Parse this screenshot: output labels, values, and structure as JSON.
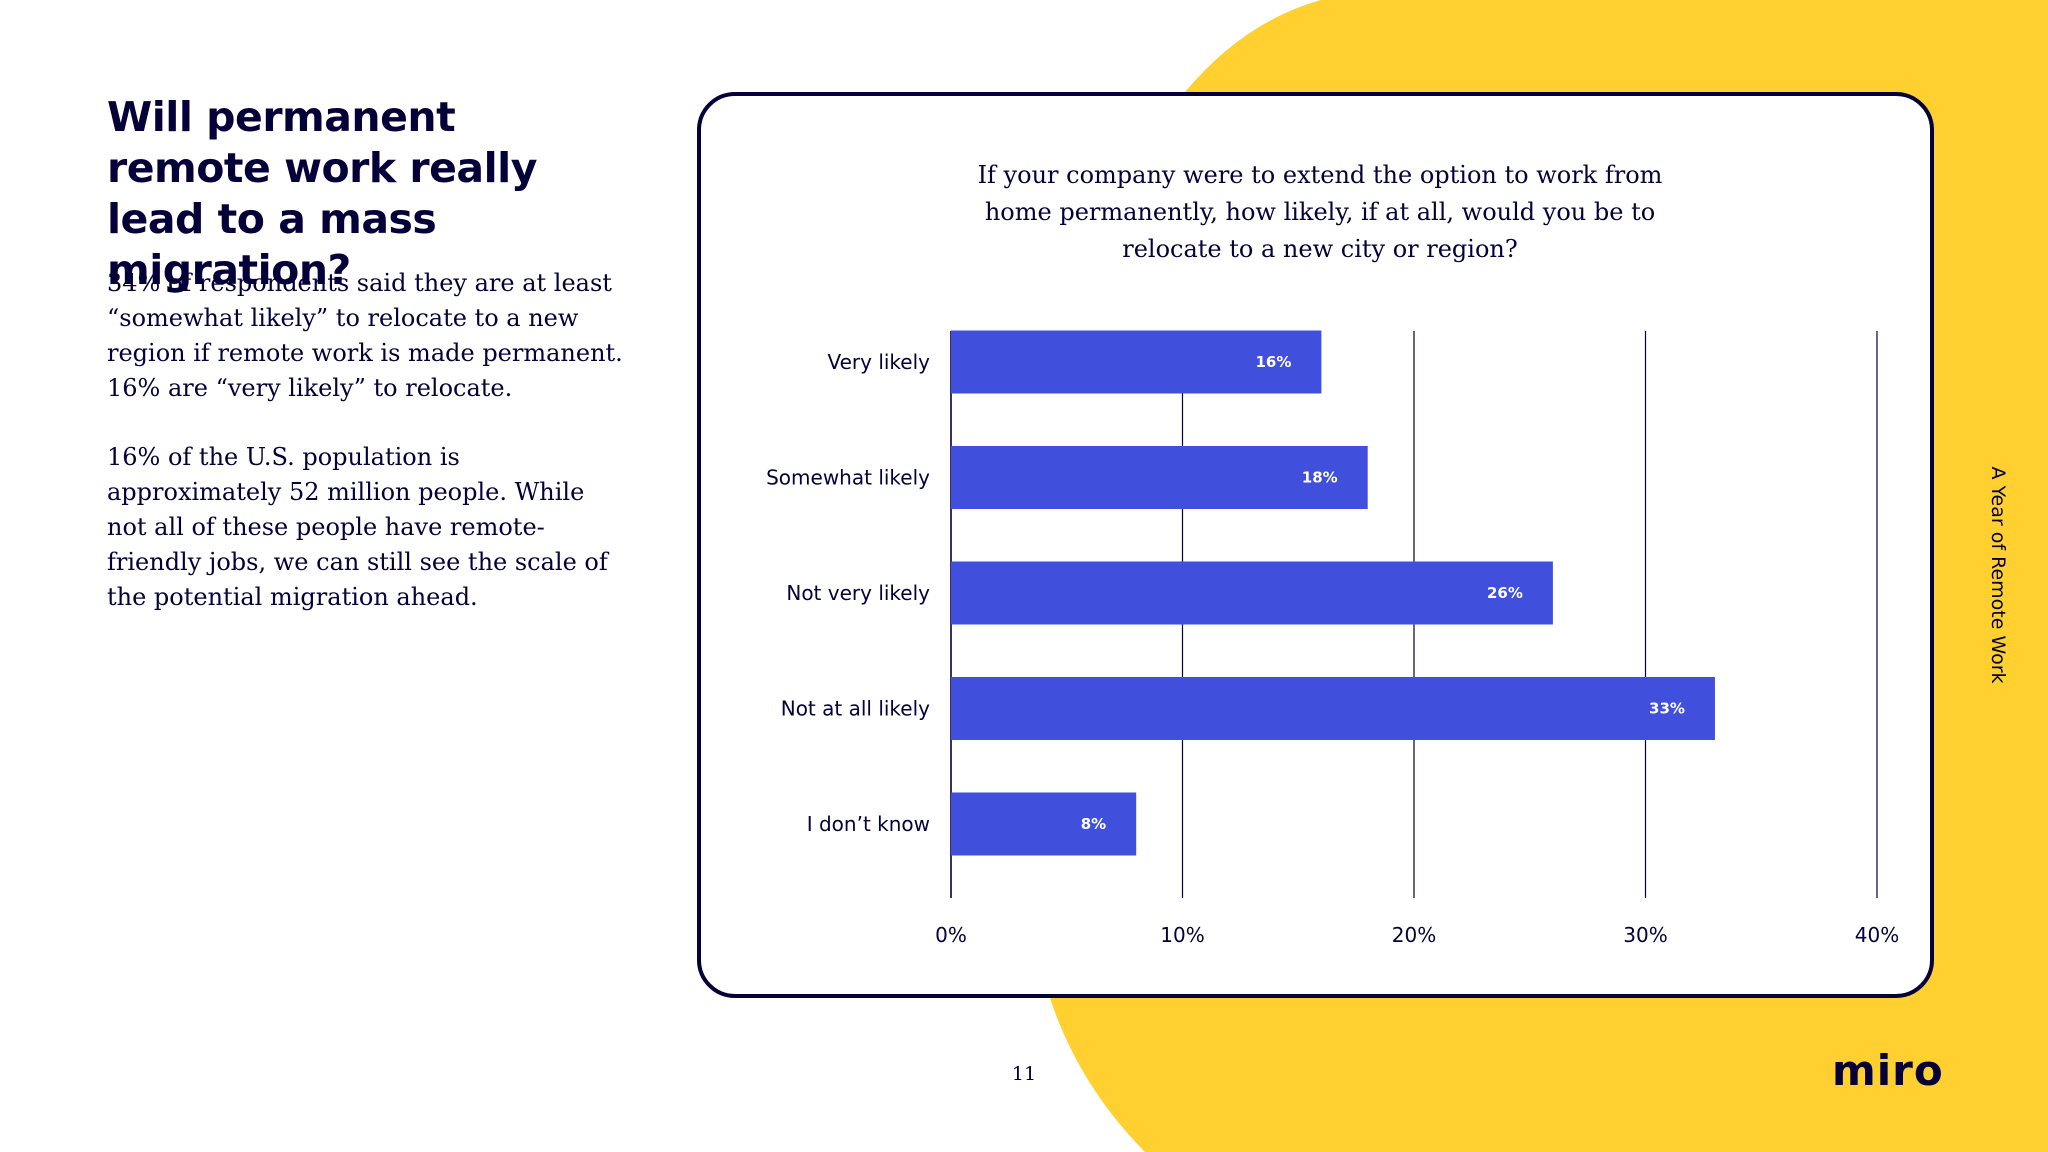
{
  "headline": "Will permanent remote work really lead to a mass migration?",
  "paragraphs": [
    "34% of respondents said they are at least “somewhat likely” to relocate to a new region if remote work is made permanent. 16% are “very likely” to relocate.",
    "16% of the U.S. population is approximately 52 million people. While not all of these people have remote-friendly jobs, we can still see the scale of the potential migration ahead."
  ],
  "side_label": "A Year of Remote Work",
  "page_number": "11",
  "logo": "miro",
  "colors": {
    "accent_yellow": "#FFD02F",
    "bar_blue": "#4050DC",
    "ink": "#050038"
  },
  "chart_data": {
    "type": "bar",
    "orientation": "horizontal",
    "title": "If your company were to extend the option to work from home permanently, how likely, if at all, would you be to relocate to a new city or region?",
    "categories": [
      "Very likely",
      "Somewhat likely",
      "Not very likely",
      "Not at all likely",
      "I don’t know"
    ],
    "values": [
      16,
      18,
      26,
      33,
      8
    ],
    "data_labels": [
      "16%",
      "18%",
      "26%",
      "33%",
      "8%"
    ],
    "xlim": [
      0,
      40
    ],
    "x_ticks": [
      0,
      10,
      20,
      30,
      40
    ],
    "x_tick_labels": [
      "0%",
      "10%",
      "20%",
      "30%",
      "40%"
    ],
    "xlabel": "",
    "ylabel": "",
    "grid": true,
    "legend": "none"
  }
}
